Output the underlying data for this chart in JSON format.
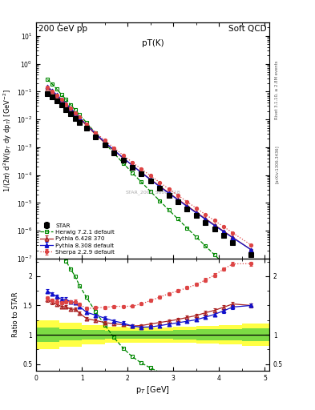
{
  "title_top_left": "200 GeV pp",
  "title_top_right": "Soft QCD",
  "plot_title": "pT(K)",
  "xlabel": "p_{T} [GeV]",
  "ylabel_main": "1/(2#pi) d^{2}N/(p_{T} dy dp_{T}) [GeV^{-2}]",
  "ylabel_ratio": "Ratio to STAR",
  "watermark": "STAR_2006_S6860818",
  "right_label_top": "Rivet 3.1.10, >= 2.8M events",
  "right_label_bottom": "[arXiv:1306.3436]",
  "star_x": [
    0.25,
    0.35,
    0.45,
    0.55,
    0.65,
    0.75,
    0.85,
    0.95,
    1.1,
    1.3,
    1.5,
    1.7,
    1.9,
    2.1,
    2.3,
    2.5,
    2.7,
    2.9,
    3.1,
    3.3,
    3.5,
    3.7,
    3.9,
    4.1,
    4.3,
    4.7
  ],
  "star_y": [
    0.085,
    0.063,
    0.046,
    0.033,
    0.023,
    0.016,
    0.011,
    0.0079,
    0.0047,
    0.0023,
    0.0012,
    0.00064,
    0.00035,
    0.000195,
    0.000108,
    6e-05,
    3.35e-05,
    1.88e-05,
    1.07e-05,
    6.1e-06,
    3.5e-06,
    2e-06,
    1.15e-06,
    6.6e-07,
    3.8e-07,
    1.4e-07
  ],
  "star_yerr": [
    0.004,
    0.003,
    0.002,
    0.0015,
    0.001,
    0.0007,
    0.0005,
    0.00035,
    0.0002,
    0.0001,
    5e-05,
    2.8e-05,
    1.5e-05,
    8.5e-06,
    4.7e-06,
    2.6e-06,
    1.5e-06,
    8.2e-07,
    4.7e-07,
    2.7e-07,
    1.5e-07,
    8.7e-08,
    5e-08,
    2.9e-08,
    1.7e-08,
    6e-09
  ],
  "herwig_x": [
    0.25,
    0.35,
    0.45,
    0.55,
    0.65,
    0.75,
    0.85,
    0.95,
    1.1,
    1.3,
    1.5,
    1.7,
    1.9,
    2.1,
    2.3,
    2.5,
    2.7,
    2.9,
    3.1,
    3.3,
    3.5,
    3.7,
    3.9,
    4.1,
    4.3,
    4.7
  ],
  "herwig_y": [
    0.27,
    0.185,
    0.122,
    0.079,
    0.052,
    0.034,
    0.022,
    0.0145,
    0.0077,
    0.0032,
    0.0014,
    0.00061,
    0.00027,
    0.000122,
    5.6e-05,
    2.6e-05,
    1.2e-05,
    5.6e-06,
    2.65e-06,
    1.26e-06,
    6e-07,
    2.87e-07,
    1.38e-07,
    6.6e-08,
    3.2e-08,
    7e-09
  ],
  "pythia6_x": [
    0.25,
    0.35,
    0.45,
    0.55,
    0.65,
    0.75,
    0.85,
    0.95,
    1.1,
    1.3,
    1.5,
    1.7,
    1.9,
    2.1,
    2.3,
    2.5,
    2.7,
    2.9,
    3.1,
    3.3,
    3.5,
    3.7,
    3.9,
    4.1,
    4.3,
    4.7
  ],
  "pythia6_y": [
    0.136,
    0.098,
    0.07,
    0.049,
    0.034,
    0.023,
    0.0158,
    0.0108,
    0.006,
    0.00286,
    0.00145,
    0.00076,
    0.00041,
    0.000224,
    0.000125,
    7.1e-05,
    4.05e-05,
    2.32e-05,
    1.35e-05,
    7.9e-06,
    4.65e-06,
    2.75e-06,
    1.63e-06,
    9.7e-07,
    5.8e-07,
    2.1e-07
  ],
  "pythia6_yerr": [
    0.003,
    0.002,
    0.0015,
    0.001,
    0.0007,
    0.0005,
    0.00035,
    0.00024,
    0.00013,
    6.4e-05,
    3.2e-05,
    1.7e-05,
    9.2e-06,
    5e-06,
    2.8e-06,
    1.6e-06,
    9.1e-07,
    5.2e-07,
    3e-07,
    1.8e-07,
    1e-07,
    6.2e-08,
    3.7e-08,
    2.2e-08,
    1.3e-08,
    4.7e-09
  ],
  "pythia8_x": [
    0.25,
    0.35,
    0.45,
    0.55,
    0.65,
    0.75,
    0.85,
    0.95,
    1.1,
    1.3,
    1.5,
    1.7,
    1.9,
    2.1,
    2.3,
    2.5,
    2.7,
    2.9,
    3.1,
    3.3,
    3.5,
    3.7,
    3.9,
    4.1,
    4.3,
    4.7
  ],
  "pythia8_y": [
    0.148,
    0.107,
    0.076,
    0.053,
    0.037,
    0.025,
    0.017,
    0.0117,
    0.0065,
    0.00307,
    0.00154,
    0.00079,
    0.00042,
    0.000224,
    0.000122,
    6.8e-05,
    3.87e-05,
    2.22e-05,
    1.29e-05,
    7.5e-06,
    4.4e-06,
    2.6e-06,
    1.55e-06,
    9.3e-07,
    5.6e-07,
    2.1e-07
  ],
  "pythia8_yerr": [
    0.003,
    0.002,
    0.0015,
    0.001,
    0.0007,
    0.0005,
    0.00035,
    0.00024,
    0.00013,
    6.4e-05,
    3.2e-05,
    1.7e-05,
    9.2e-06,
    5e-06,
    2.8e-06,
    1.6e-06,
    9.1e-07,
    5.2e-07,
    3e-07,
    1.8e-07,
    1e-07,
    6.2e-08,
    3.7e-08,
    2.2e-08,
    1.3e-08,
    4.7e-09
  ],
  "sherpa_x": [
    0.25,
    0.35,
    0.45,
    0.55,
    0.65,
    0.75,
    0.85,
    0.95,
    1.1,
    1.3,
    1.5,
    1.7,
    1.9,
    2.1,
    2.3,
    2.5,
    2.7,
    2.9,
    3.1,
    3.3,
    3.5,
    3.7,
    3.9,
    4.1,
    4.3,
    4.7
  ],
  "sherpa_y": [
    0.138,
    0.1,
    0.072,
    0.051,
    0.036,
    0.025,
    0.0172,
    0.012,
    0.0068,
    0.00336,
    0.00176,
    0.00095,
    0.00052,
    0.00029,
    0.000165,
    9.5e-05,
    5.5e-05,
    3.2e-05,
    1.87e-05,
    1.1e-05,
    6.5e-06,
    3.87e-06,
    2.32e-06,
    1.4e-06,
    8.4e-07,
    3.1e-07
  ],
  "sherpa_yerr": [
    0.003,
    0.002,
    0.0015,
    0.001,
    0.0007,
    0.0005,
    0.00035,
    0.00024,
    0.00013,
    6.4e-05,
    3.2e-05,
    1.7e-05,
    9.2e-06,
    5e-06,
    2.8e-06,
    1.6e-06,
    9.1e-07,
    5.2e-07,
    3e-07,
    1.8e-07,
    1e-07,
    6.2e-08,
    3.7e-08,
    2.2e-08,
    1.3e-08,
    4.7e-09
  ],
  "band_edges": [
    0.0,
    0.5,
    1.0,
    1.5,
    2.0,
    2.5,
    3.0,
    3.5,
    4.0,
    4.5,
    5.2
  ],
  "green_lo": [
    0.88,
    0.9,
    0.92,
    0.93,
    0.93,
    0.93,
    0.92,
    0.91,
    0.9,
    0.89,
    0.89
  ],
  "green_hi": [
    1.12,
    1.1,
    1.08,
    1.07,
    1.07,
    1.07,
    1.08,
    1.09,
    1.1,
    1.11,
    1.11
  ],
  "yellow_lo": [
    0.75,
    0.8,
    0.84,
    0.86,
    0.87,
    0.87,
    0.86,
    0.85,
    0.83,
    0.81,
    0.79
  ],
  "yellow_hi": [
    1.25,
    1.2,
    1.16,
    1.14,
    1.13,
    1.13,
    1.14,
    1.15,
    1.17,
    1.19,
    1.21
  ],
  "star_color": "#000000",
  "herwig_color": "#008800",
  "pythia6_color": "#aa2222",
  "pythia8_color": "#1111cc",
  "sherpa_color": "#dd4444",
  "ylim_main": [
    1e-07,
    30
  ],
  "ylim_ratio": [
    0.38,
    2.3
  ],
  "xlim": [
    0.0,
    5.1
  ],
  "fig_width": 3.93,
  "fig_height": 5.12,
  "dpi": 100
}
